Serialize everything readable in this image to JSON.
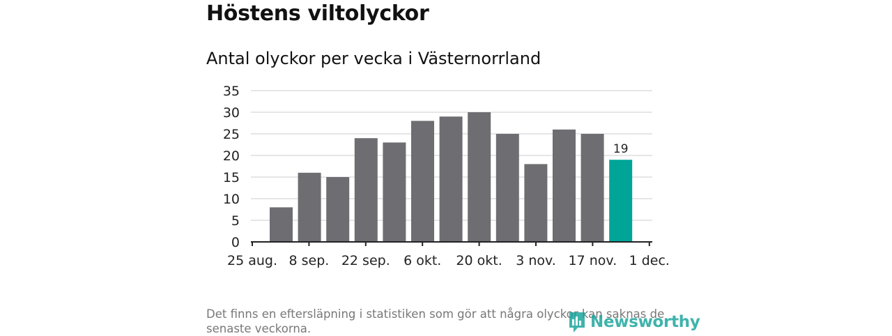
{
  "title": "Höstens viltolyckor",
  "chart_data": {
    "type": "bar",
    "title": "Antal olyckor per vecka i Västernorrland",
    "xlabel": "",
    "ylabel": "",
    "ylim": [
      0,
      35
    ],
    "yticks": [
      "0",
      "5",
      "10",
      "15",
      "20",
      "25",
      "30",
      "35"
    ],
    "xticks": [
      "25 aug.",
      "8 sep.",
      "22 sep.",
      "6 okt.",
      "20 okt.",
      "3 nov.",
      "17 nov.",
      "1 dec."
    ],
    "values": [
      8,
      16,
      15,
      24,
      23,
      28,
      29,
      30,
      25,
      18,
      26,
      25,
      19
    ],
    "highlight_index": 12,
    "highlight_label": "19",
    "grid": true
  },
  "colors": {
    "bar": "#6e6d72",
    "highlight": "#00a598",
    "grid": "#d8d8d8",
    "axis": "#222222"
  },
  "note": "Det finns en eftersläpning i statistiken som gör att några olyckor kan saknas de senaste veckorna.",
  "brand": {
    "name": "Newsworthy",
    "icon": "newsworthy-logo-icon"
  }
}
